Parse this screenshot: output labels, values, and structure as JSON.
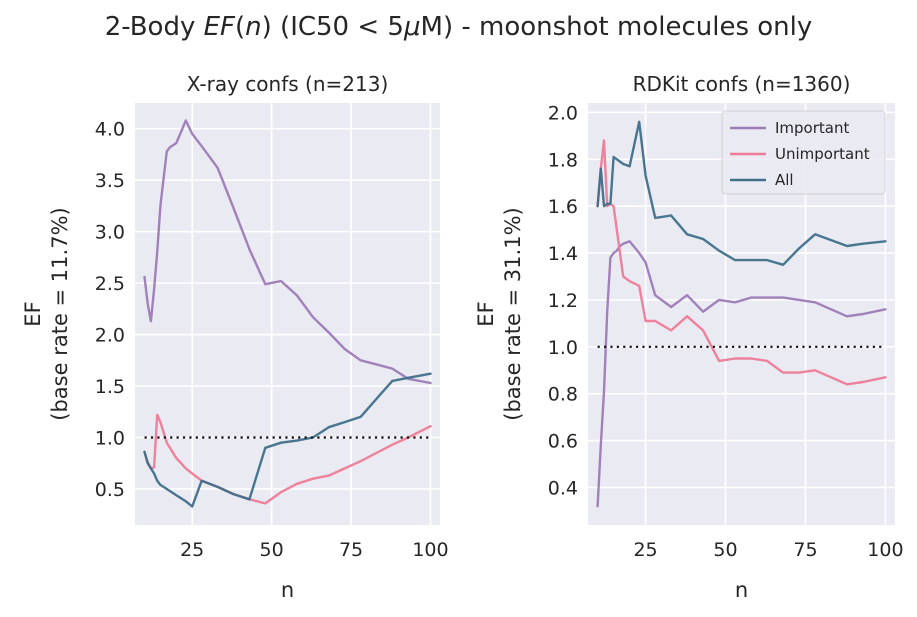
{
  "figure": {
    "suptitle_prefix": "2-Body ",
    "suptitle_ef": "EF",
    "suptitle_paren_open": "(",
    "suptitle_n": "n",
    "suptitle_mid": ") (IC50 < 5",
    "suptitle_mu": "μ",
    "suptitle_suffix": "M) - moonshot molecules only"
  },
  "colors": {
    "background": "#eaeaf2",
    "grid": "#ffffff",
    "Important": "#9d7bb6",
    "Unimportant": "#ee7b97",
    "All": "#3f6f89",
    "baseline": "#111111"
  },
  "chart_data": [
    {
      "type": "line",
      "title": "X-ray confs (n=213)",
      "xlabel": "n",
      "ylabel_line1": "EF",
      "ylabel_line2": "(base rate = 11.7%)",
      "xlim": [
        7,
        103
      ],
      "ylim": [
        0.15,
        4.25
      ],
      "xticks": [
        25,
        50,
        75,
        100
      ],
      "yticks": [
        0.5,
        1.0,
        1.5,
        2.0,
        2.5,
        3.0,
        3.5,
        4.0
      ],
      "ytick_labels": [
        "0.5",
        "1.0",
        "1.5",
        "2.0",
        "2.5",
        "3.0",
        "3.5",
        "4.0"
      ],
      "baseline": {
        "y": 1.0,
        "x": [
          10,
          100
        ]
      },
      "series": [
        {
          "name": "Important",
          "x": [
            10,
            11,
            12,
            13,
            14,
            15,
            16,
            17,
            18,
            20,
            23,
            25,
            28,
            33,
            38,
            43,
            48,
            53,
            58,
            63,
            68,
            73,
            78,
            88,
            93,
            100
          ],
          "y": [
            2.56,
            2.3,
            2.13,
            2.44,
            2.8,
            3.25,
            3.52,
            3.78,
            3.82,
            3.86,
            4.08,
            3.95,
            3.83,
            3.62,
            3.23,
            2.83,
            2.49,
            2.52,
            2.38,
            2.17,
            2.02,
            1.86,
            1.75,
            1.67,
            1.57,
            1.53
          ]
        },
        {
          "name": "Unimportant",
          "x": [
            10,
            11,
            12,
            13,
            14,
            15,
            16,
            17,
            18,
            20,
            23,
            25,
            28,
            33,
            38,
            43,
            48,
            53,
            58,
            63,
            68,
            73,
            78,
            88,
            93,
            100
          ],
          "y": [
            0.86,
            0.76,
            0.7,
            0.71,
            1.22,
            1.15,
            1.05,
            0.95,
            0.9,
            0.8,
            0.7,
            0.65,
            0.58,
            0.52,
            0.45,
            0.4,
            0.36,
            0.47,
            0.55,
            0.6,
            0.63,
            0.7,
            0.77,
            0.93,
            1.0,
            1.11
          ]
        },
        {
          "name": "All",
          "x": [
            10,
            11,
            12,
            13,
            14,
            15,
            16,
            17,
            18,
            20,
            23,
            25,
            28,
            33,
            38,
            43,
            48,
            53,
            58,
            63,
            68,
            73,
            78,
            88,
            93,
            100
          ],
          "y": [
            0.86,
            0.75,
            0.7,
            0.65,
            0.58,
            0.54,
            0.52,
            0.5,
            0.48,
            0.44,
            0.38,
            0.33,
            0.58,
            0.52,
            0.45,
            0.4,
            0.9,
            0.95,
            0.97,
            1.0,
            1.1,
            1.15,
            1.2,
            1.55,
            1.58,
            1.62
          ]
        }
      ]
    },
    {
      "type": "line",
      "title": "RDKit confs (n=1360)",
      "xlabel": "n",
      "ylabel_line1": "EF",
      "ylabel_line2": "(base rate = 31.1%)",
      "xlim": [
        7,
        103
      ],
      "ylim": [
        0.24,
        2.04
      ],
      "xticks": [
        25,
        50,
        75,
        100
      ],
      "yticks": [
        0.4,
        0.6,
        0.8,
        1.0,
        1.2,
        1.4,
        1.6,
        1.8,
        2.0
      ],
      "ytick_labels": [
        "0.4",
        "0.6",
        "0.8",
        "1.0",
        "1.2",
        "1.4",
        "1.6",
        "1.8",
        "2.0"
      ],
      "baseline": {
        "y": 1.0,
        "x": [
          10,
          100
        ]
      },
      "legend": {
        "placement": "upper right",
        "entries": [
          "Important",
          "Unimportant",
          "All"
        ]
      },
      "series": [
        {
          "name": "Important",
          "x": [
            10,
            11,
            12,
            13,
            14,
            15,
            16,
            17,
            18,
            20,
            23,
            25,
            28,
            33,
            38,
            43,
            48,
            53,
            58,
            63,
            68,
            73,
            78,
            88,
            93,
            100
          ],
          "y": [
            0.32,
            0.58,
            0.81,
            1.15,
            1.38,
            1.4,
            1.41,
            1.43,
            1.44,
            1.45,
            1.4,
            1.36,
            1.22,
            1.17,
            1.22,
            1.15,
            1.2,
            1.19,
            1.21,
            1.21,
            1.21,
            1.2,
            1.19,
            1.13,
            1.14,
            1.16
          ]
        },
        {
          "name": "Unimportant",
          "x": [
            10,
            11,
            12,
            13,
            14,
            15,
            16,
            17,
            18,
            20,
            23,
            25,
            28,
            33,
            38,
            43,
            48,
            53,
            58,
            63,
            68,
            73,
            78,
            88,
            93,
            100
          ],
          "y": [
            1.6,
            1.76,
            1.88,
            1.6,
            1.61,
            1.6,
            1.5,
            1.4,
            1.3,
            1.28,
            1.26,
            1.11,
            1.11,
            1.07,
            1.13,
            1.07,
            0.94,
            0.95,
            0.95,
            0.94,
            0.89,
            0.89,
            0.9,
            0.84,
            0.85,
            0.87
          ]
        },
        {
          "name": "All",
          "x": [
            10,
            11,
            12,
            13,
            14,
            15,
            16,
            17,
            18,
            20,
            23,
            25,
            28,
            33,
            38,
            43,
            48,
            53,
            58,
            63,
            68,
            73,
            78,
            88,
            93,
            100
          ],
          "y": [
            1.6,
            1.76,
            1.6,
            1.61,
            1.61,
            1.81,
            1.8,
            1.79,
            1.78,
            1.77,
            1.96,
            1.73,
            1.55,
            1.56,
            1.48,
            1.46,
            1.41,
            1.37,
            1.37,
            1.37,
            1.35,
            1.42,
            1.48,
            1.43,
            1.44,
            1.45
          ]
        }
      ]
    }
  ]
}
